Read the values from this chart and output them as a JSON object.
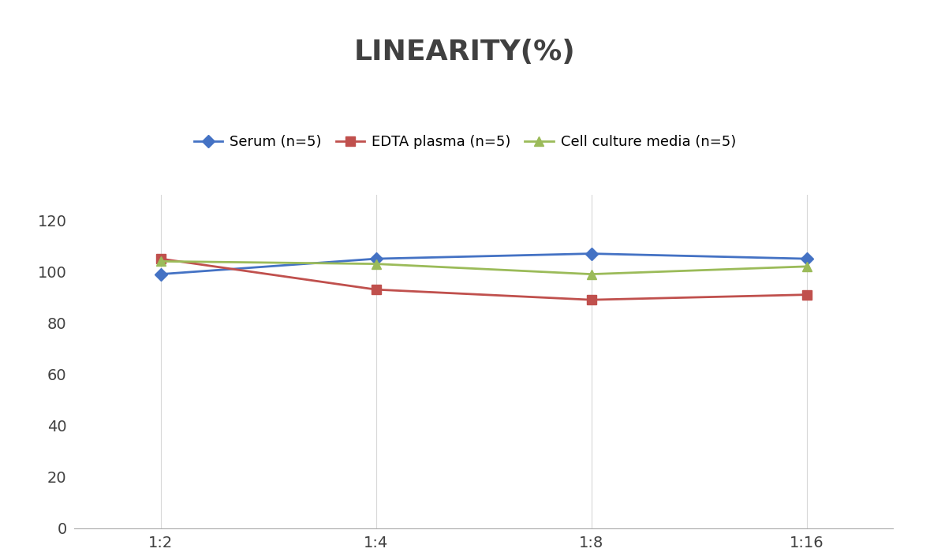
{
  "title": "LINEARITY(%)",
  "x_labels": [
    "1:2",
    "1:4",
    "1:8",
    "1:16"
  ],
  "x_positions": [
    0,
    1,
    2,
    3
  ],
  "series": [
    {
      "label": "Serum (n=5)",
      "values": [
        99,
        105,
        107,
        105
      ],
      "color": "#4472C4",
      "marker": "D",
      "markersize": 8,
      "linewidth": 2.0
    },
    {
      "label": "EDTA plasma (n=5)",
      "values": [
        105,
        93,
        89,
        91
      ],
      "color": "#C0504D",
      "marker": "s",
      "markersize": 8,
      "linewidth": 2.0
    },
    {
      "label": "Cell culture media (n=5)",
      "values": [
        104,
        103,
        99,
        102
      ],
      "color": "#9BBB59",
      "marker": "^",
      "markersize": 8,
      "linewidth": 2.0
    }
  ],
  "ylim": [
    0,
    130
  ],
  "yticks": [
    0,
    20,
    40,
    60,
    80,
    100,
    120
  ],
  "background_color": "#ffffff",
  "title_fontsize": 26,
  "legend_fontsize": 13,
  "tick_fontsize": 14,
  "grid_color": "#d8d8d8",
  "grid_linewidth": 0.8,
  "title_color": "#404040"
}
